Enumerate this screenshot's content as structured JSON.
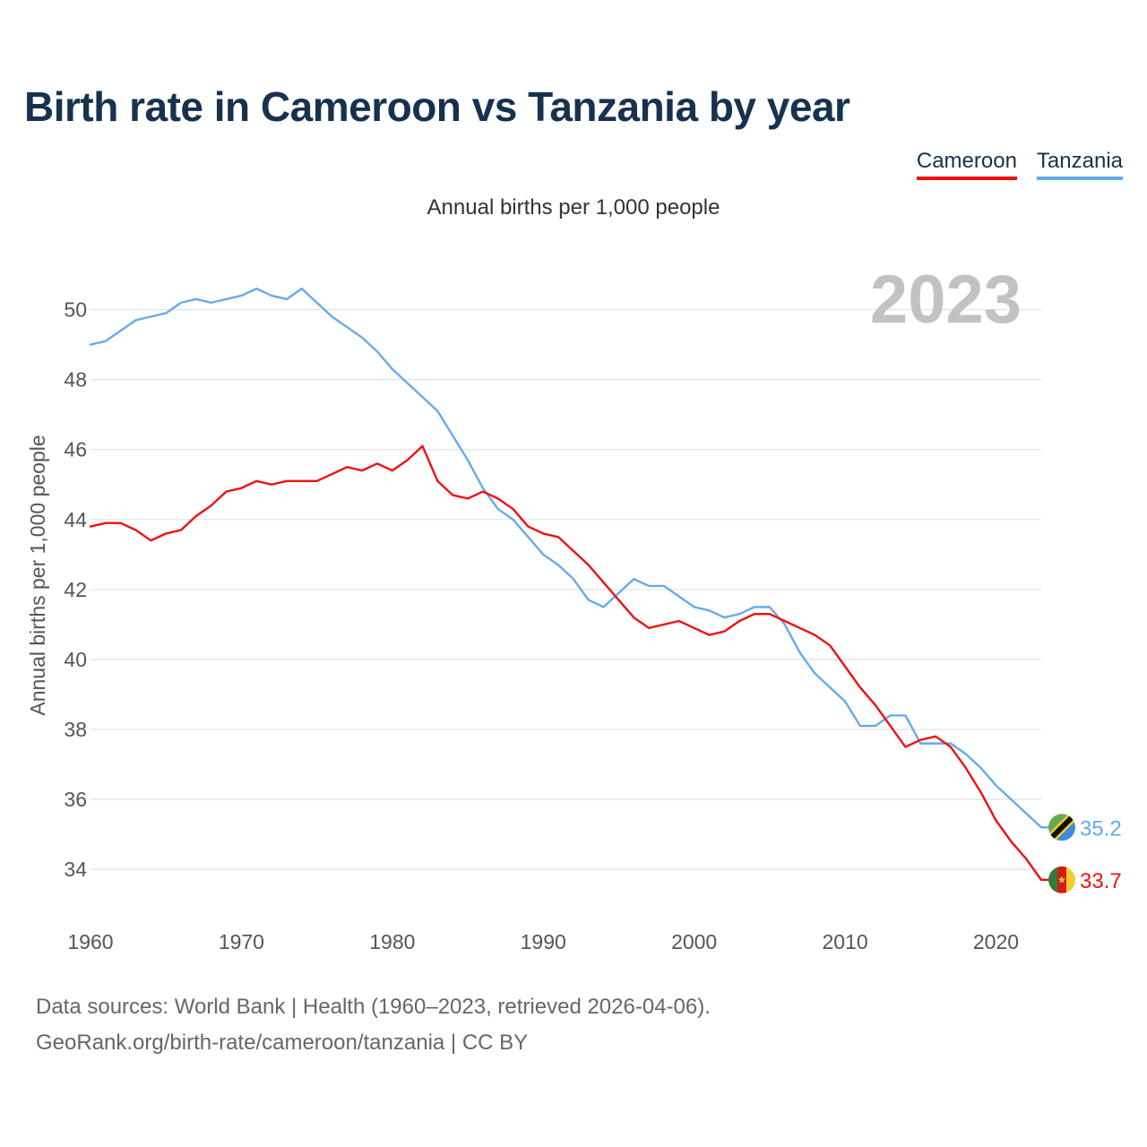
{
  "title": "Birth rate in Cameroon vs Tanzania by year",
  "subtitle": "Annual births per 1,000 people",
  "legend": [
    {
      "name": "Cameroon",
      "color": "#ee1111"
    },
    {
      "name": "Tanzania",
      "color": "#66aaee"
    }
  ],
  "footer": {
    "line1": "Data sources: World Bank | Health (1960–2023, retrieved 2026-04-06).",
    "line2": "GeoRank.org/birth-rate/cameroon/tanzania | CC BY"
  },
  "chart_data": {
    "type": "line",
    "title": "Birth rate in Cameroon vs Tanzania by year",
    "ylabel": "Annual births per 1,000 people",
    "xlabel": "",
    "year_label": "2023",
    "xlim": [
      1960,
      2023
    ],
    "ylim": [
      32.8,
      51.5
    ],
    "xticks": [
      1960,
      1970,
      1980,
      1990,
      2000,
      2010,
      2020
    ],
    "yticks": [
      34,
      36,
      38,
      40,
      42,
      44,
      46,
      48,
      50
    ],
    "grid": true,
    "legend_position": "top-right",
    "x": [
      1960,
      1961,
      1962,
      1963,
      1964,
      1965,
      1966,
      1967,
      1968,
      1969,
      1970,
      1971,
      1972,
      1973,
      1974,
      1975,
      1976,
      1977,
      1978,
      1979,
      1980,
      1981,
      1982,
      1983,
      1984,
      1985,
      1986,
      1987,
      1988,
      1989,
      1990,
      1991,
      1992,
      1993,
      1994,
      1995,
      1996,
      1997,
      1998,
      1999,
      2000,
      2001,
      2002,
      2003,
      2004,
      2005,
      2006,
      2007,
      2008,
      2009,
      2010,
      2011,
      2012,
      2013,
      2014,
      2015,
      2016,
      2017,
      2018,
      2019,
      2020,
      2021,
      2022,
      2023
    ],
    "series": [
      {
        "name": "Cameroon",
        "color": "#ee1111",
        "end_label": "33.7",
        "values": [
          43.8,
          43.9,
          43.9,
          43.7,
          43.4,
          43.6,
          43.7,
          44.1,
          44.4,
          44.8,
          44.9,
          45.1,
          45.0,
          45.1,
          45.1,
          45.1,
          45.3,
          45.5,
          45.4,
          45.6,
          45.4,
          45.7,
          46.1,
          45.1,
          44.7,
          44.6,
          44.8,
          44.6,
          44.3,
          43.8,
          43.6,
          43.5,
          43.1,
          42.7,
          42.2,
          41.7,
          41.2,
          40.9,
          41.0,
          41.1,
          40.9,
          40.7,
          40.8,
          41.1,
          41.3,
          41.3,
          41.1,
          40.9,
          40.7,
          40.4,
          39.8,
          39.2,
          38.7,
          38.1,
          37.5,
          37.7,
          37.8,
          37.5,
          36.9,
          36.2,
          35.4,
          34.8,
          34.3,
          33.7
        ]
      },
      {
        "name": "Tanzania",
        "color": "#66aaee",
        "end_label": "35.2",
        "values": [
          49.0,
          49.1,
          49.4,
          49.7,
          49.8,
          49.9,
          50.2,
          50.3,
          50.2,
          50.3,
          50.4,
          50.6,
          50.4,
          50.3,
          50.6,
          50.2,
          49.8,
          49.5,
          49.2,
          48.8,
          48.3,
          47.9,
          47.5,
          47.1,
          46.4,
          45.7,
          44.9,
          44.3,
          44.0,
          43.5,
          43.0,
          42.7,
          42.3,
          41.7,
          41.5,
          41.9,
          42.3,
          42.1,
          42.1,
          41.8,
          41.5,
          41.4,
          41.2,
          41.3,
          41.5,
          41.5,
          41.0,
          40.2,
          39.6,
          39.2,
          38.8,
          38.1,
          38.1,
          38.4,
          38.4,
          37.6,
          37.6,
          37.6,
          37.3,
          36.9,
          36.4,
          36.0,
          35.6,
          35.2
        ]
      }
    ]
  }
}
